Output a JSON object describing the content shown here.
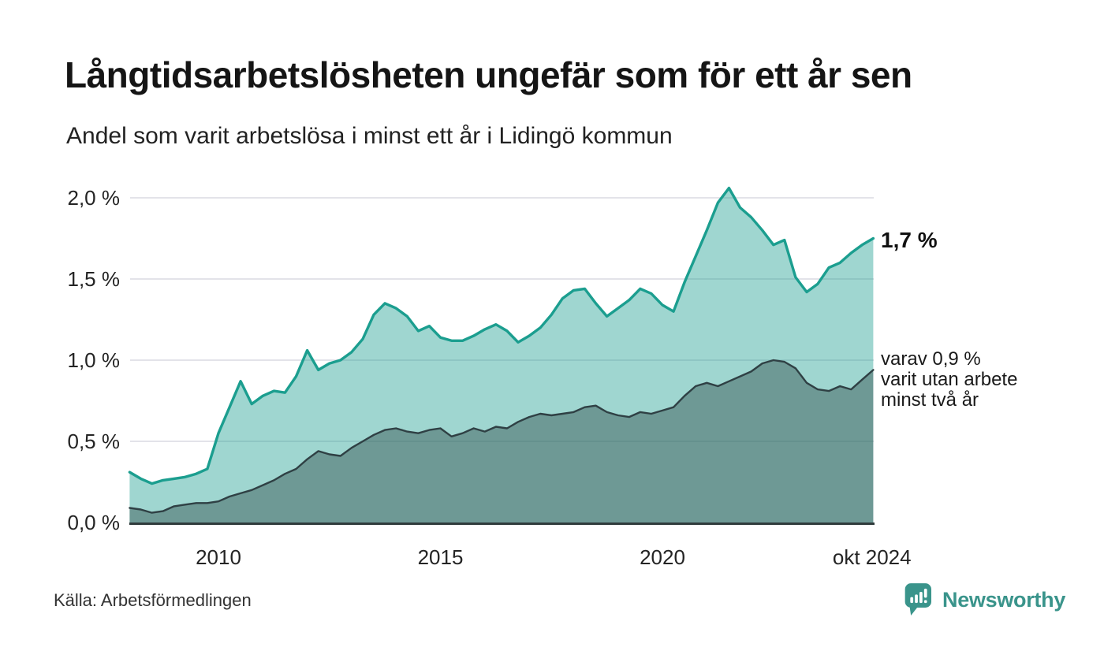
{
  "header": {
    "title": "Långtidsarbetslösheten ungefär som för ett år sen",
    "subtitle": "Andel som varit arbetslösa i minst ett år i Lidingö kommun"
  },
  "annotations": {
    "primary": "1,7 %",
    "secondary_lines": [
      "varav 0,9 %",
      "varit utan arbete",
      "minst två år"
    ]
  },
  "footer": {
    "source": "Källa: Arbetsförmedlingen",
    "brand": "Newsworthy"
  },
  "theme": {
    "line_one_year": "#1b9e8f",
    "fill_one_year": "rgba(27,158,143,0.42)",
    "line_two_years": "#2f4044",
    "fill_two_years": "rgba(52,80,78,0.45)",
    "grid": "#e3e3e9",
    "axis": "#2f3b3c",
    "brand_teal": "#3a948b",
    "text_dark": "#151515"
  },
  "chart_data": {
    "type": "area",
    "title": "Långtidsarbetslösheten ungefär som för ett år sen",
    "subtitle": "Andel som varit arbetslösa i minst ett år i Lidingö kommun",
    "xlabel": "",
    "ylabel": "",
    "unit": "%",
    "grid": true,
    "legend": "none",
    "xlim": [
      2008,
      2024.83
    ],
    "ylim": [
      0,
      2.2
    ],
    "x_ticks": [
      {
        "label": "2010",
        "year": 2010
      },
      {
        "label": "2015",
        "year": 2015
      },
      {
        "label": "2020",
        "year": 2020
      },
      {
        "label": "okt 2024",
        "year": 2024.72
      }
    ],
    "y_ticks": [
      {
        "label": "2,0 %",
        "value": 2.0
      },
      {
        "label": "1,5 %",
        "value": 1.5
      },
      {
        "label": "1,0 %",
        "value": 1.0
      },
      {
        "label": "0,5 %",
        "value": 0.5
      },
      {
        "label": "0,0 %",
        "value": 0.0
      }
    ],
    "x": [
      2008,
      2008.25,
      2008.5,
      2008.75,
      2009,
      2009.25,
      2009.5,
      2009.75,
      2010,
      2010.25,
      2010.5,
      2010.75,
      2011,
      2011.25,
      2011.5,
      2011.75,
      2012,
      2012.25,
      2012.5,
      2012.75,
      2013,
      2013.25,
      2013.5,
      2013.75,
      2014,
      2014.25,
      2014.5,
      2014.75,
      2015,
      2015.25,
      2015.5,
      2015.75,
      2016,
      2016.25,
      2016.5,
      2016.75,
      2017,
      2017.25,
      2017.5,
      2017.75,
      2018,
      2018.25,
      2018.5,
      2018.75,
      2019,
      2019.25,
      2019.5,
      2019.75,
      2020,
      2020.25,
      2020.5,
      2020.75,
      2021,
      2021.25,
      2021.5,
      2021.75,
      2022,
      2022.25,
      2022.5,
      2022.75,
      2023,
      2023.25,
      2023.5,
      2023.75,
      2024,
      2024.25,
      2024.5,
      2024.75
    ],
    "series": [
      {
        "name": "Andel arbetslösa minst ett år",
        "color": "#1b9e8f",
        "fill": "rgba(27,158,143,0.42)",
        "last_value_label": "1,7 %",
        "values": [
          0.31,
          0.27,
          0.24,
          0.26,
          0.27,
          0.28,
          0.3,
          0.33,
          0.55,
          0.71,
          0.87,
          0.73,
          0.78,
          0.81,
          0.8,
          0.9,
          1.06,
          0.94,
          0.98,
          1.0,
          1.05,
          1.13,
          1.28,
          1.35,
          1.32,
          1.27,
          1.18,
          1.21,
          1.14,
          1.12,
          1.12,
          1.15,
          1.19,
          1.22,
          1.18,
          1.11,
          1.15,
          1.2,
          1.28,
          1.38,
          1.43,
          1.44,
          1.35,
          1.27,
          1.32,
          1.37,
          1.44,
          1.41,
          1.34,
          1.3,
          1.48,
          1.64,
          1.8,
          1.97,
          2.06,
          1.94,
          1.88,
          1.8,
          1.71,
          1.74,
          1.51,
          1.42,
          1.47,
          1.57,
          1.6,
          1.66,
          1.71,
          1.75
        ]
      },
      {
        "name": "varav utan arbete minst två år",
        "color": "#2f4044",
        "fill": "rgba(52,80,78,0.45)",
        "last_value_label": "0,9 %",
        "values": [
          0.09,
          0.08,
          0.06,
          0.07,
          0.1,
          0.11,
          0.12,
          0.12,
          0.13,
          0.16,
          0.18,
          0.2,
          0.23,
          0.26,
          0.3,
          0.33,
          0.39,
          0.44,
          0.42,
          0.41,
          0.46,
          0.5,
          0.54,
          0.57,
          0.58,
          0.56,
          0.55,
          0.57,
          0.58,
          0.53,
          0.55,
          0.58,
          0.56,
          0.59,
          0.58,
          0.62,
          0.65,
          0.67,
          0.66,
          0.67,
          0.68,
          0.71,
          0.72,
          0.68,
          0.66,
          0.65,
          0.68,
          0.67,
          0.69,
          0.71,
          0.78,
          0.84,
          0.86,
          0.84,
          0.87,
          0.9,
          0.93,
          0.98,
          1.0,
          0.99,
          0.95,
          0.86,
          0.82,
          0.81,
          0.84,
          0.82,
          0.88,
          0.94
        ]
      }
    ]
  }
}
